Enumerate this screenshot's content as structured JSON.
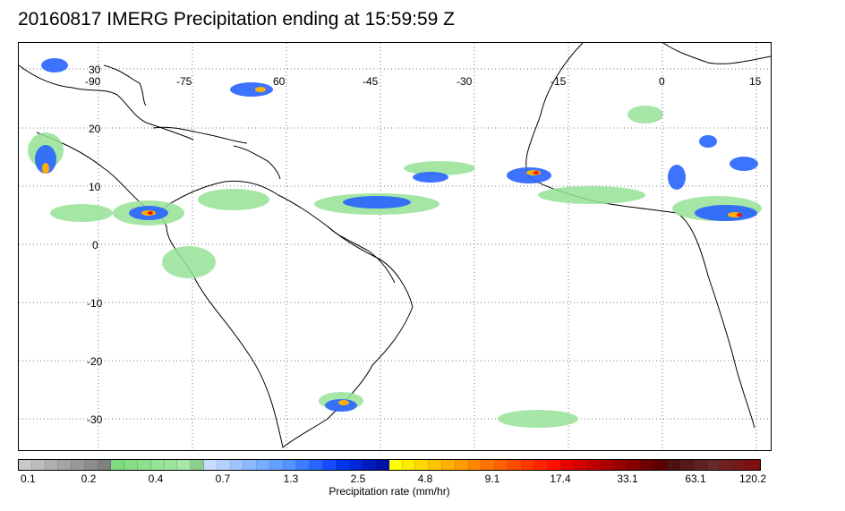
{
  "title": "20160817 IMERG Precipitation ending at 15:59:59 Z",
  "map": {
    "lon_labels": [
      "-90",
      "-75",
      "60",
      "-45",
      "-30",
      "-15",
      "0",
      "15"
    ],
    "lat_labels": [
      "30",
      "20",
      "10",
      "0",
      "-10",
      "-20",
      "-30"
    ],
    "grid": "dotted",
    "coastline_color": "#000000"
  },
  "colorbar": {
    "label": "Precipitation rate (mm/hr)",
    "tick_labels": [
      "0.1",
      "0.2",
      "0.4",
      "0.7",
      "1.3",
      "2.5",
      "4.8",
      "9.1",
      "17.4",
      "33.1",
      "63.1",
      "120.2"
    ],
    "colors": [
      "#c8c8c8",
      "#bcbcbc",
      "#b0b0b0",
      "#a4a4a4",
      "#989898",
      "#8c8c8c",
      "#808080",
      "#7ddc7d",
      "#86de86",
      "#8ee08e",
      "#96e296",
      "#9ee49e",
      "#a6e6a6",
      "#8ccf8c",
      "#c8dcff",
      "#b4d0ff",
      "#a0c4ff",
      "#8cb8ff",
      "#78acff",
      "#64a0ff",
      "#5094ff",
      "#3c7cff",
      "#2864ff",
      "#144cff",
      "#0034f0",
      "#0028d8",
      "#001cc0",
      "#0010a8",
      "#ffff00",
      "#ffec00",
      "#ffd800",
      "#ffc400",
      "#ffb000",
      "#ff9c00",
      "#ff8800",
      "#ff7400",
      "#ff6000",
      "#ff4c00",
      "#ff3800",
      "#ff2400",
      "#ff1000",
      "#e80000",
      "#d40000",
      "#c00000",
      "#ac0000",
      "#980000",
      "#840000",
      "#700000",
      "#5c0000",
      "#501010",
      "#581818",
      "#602020",
      "#682828",
      "#702020",
      "#781818",
      "#801010"
    ]
  }
}
